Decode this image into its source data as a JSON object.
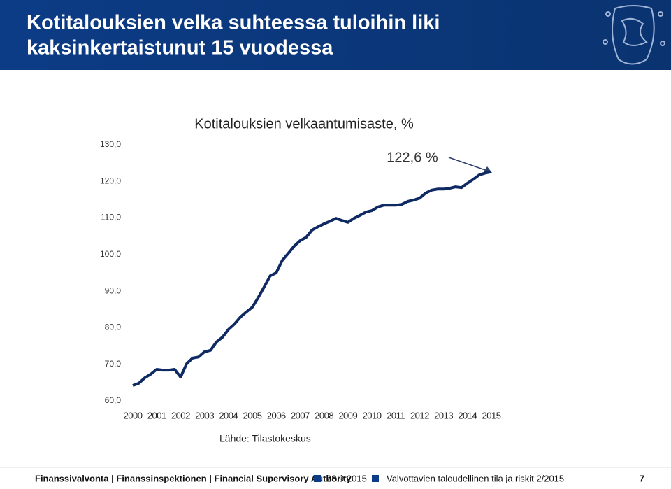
{
  "header": {
    "title_lines": [
      "Kotitalouksien velka suhteessa tuloihin liki",
      "kaksinkertaistunut 15 vuodessa"
    ]
  },
  "chart_data": {
    "type": "line",
    "title": "Kotitalouksien velkaantumisaste, %",
    "categories": [
      "2000",
      null,
      null,
      null,
      "2001",
      null,
      null,
      null,
      "2002",
      null,
      null,
      null,
      "2003",
      null,
      null,
      null,
      "2004",
      null,
      null,
      null,
      "2005",
      null,
      null,
      null,
      "2006",
      null,
      null,
      null,
      "2007",
      null,
      null,
      null,
      "2008",
      null,
      null,
      null,
      "2009",
      null,
      null,
      null,
      "2010",
      null,
      null,
      null,
      "2011",
      null,
      null,
      null,
      "2012",
      null,
      null,
      null,
      "2013",
      null,
      null,
      null,
      "2014",
      null,
      null,
      null,
      "2015"
    ],
    "values": [
      64.2,
      64.8,
      66.3,
      67.3,
      68.6,
      68.4,
      68.4,
      68.6,
      66.5,
      70.1,
      71.7,
      72.0,
      73.4,
      73.8,
      76.1,
      77.4,
      79.5,
      81.0,
      82.9,
      84.3,
      85.6,
      88.3,
      91.2,
      94.2,
      95.0,
      98.4,
      100.3,
      102.3,
      103.8,
      104.7,
      106.7,
      107.6,
      108.4,
      109.1,
      109.9,
      109.3,
      108.8,
      109.9,
      110.7,
      111.6,
      112.0,
      113.0,
      113.5,
      113.5,
      113.5,
      113.7,
      114.5,
      114.9,
      115.4,
      116.8,
      117.6,
      117.9,
      117.9,
      118.1,
      118.5,
      118.3,
      119.5,
      120.6,
      121.8,
      122.3,
      122.6
    ],
    "color": "#0f2a63",
    "ylim": [
      60,
      130
    ],
    "yticks": [
      {
        "value": 60,
        "label": "60,0"
      },
      {
        "value": 70,
        "label": "70,0"
      },
      {
        "value": 80,
        "label": "80,0"
      },
      {
        "value": 90,
        "label": "90,0"
      },
      {
        "value": 100,
        "label": "100,0"
      },
      {
        "value": 110,
        "label": "110,0"
      },
      {
        "value": 120,
        "label": "120,0"
      },
      {
        "value": 130,
        "label": "130,0"
      }
    ],
    "grid": false,
    "annotation": "122,6 %",
    "source": "Lähde: Tilastokeskus"
  },
  "footer": {
    "org": "Finanssivalvonta | Finanssinspektionen | Financial Supervisory Authority",
    "date": "28.9.2015",
    "publication": "Valvottavien taloudellinen tila ja riskit 2/2015",
    "page": "7"
  }
}
